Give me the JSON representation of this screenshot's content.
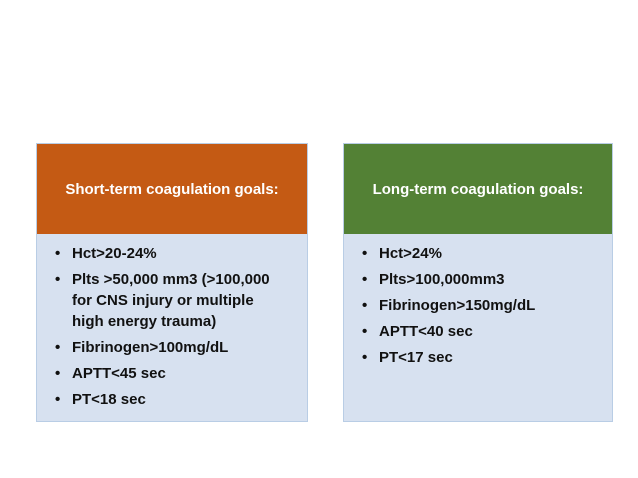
{
  "slide": {
    "background_color": "#ffffff",
    "bullet_char": "•",
    "body_background_color": "#d7e1f0",
    "body_text_color": "#111111",
    "boxes": [
      {
        "id": "short-term",
        "header": "Short-term coagulation goals:",
        "header_color": "#c45a14",
        "header_text_color": "#ffffff",
        "items": [
          "Hct>20-24%",
          "Plts >50,000 mm3 (>100,000\nfor CNS injury or multiple\nhigh energy trauma)",
          "Fibrinogen>100mg/dL",
          "APTT<45 sec",
          "PT<18 sec"
        ]
      },
      {
        "id": "long-term",
        "header": "Long-term coagulation goals:",
        "header_color": "#538135",
        "header_text_color": "#ffffff",
        "items": [
          "Hct>24%",
          "Plts>100,000mm3",
          "Fibrinogen>150mg/dL",
          "APTT<40 sec",
          "PT<17 sec"
        ]
      }
    ]
  }
}
